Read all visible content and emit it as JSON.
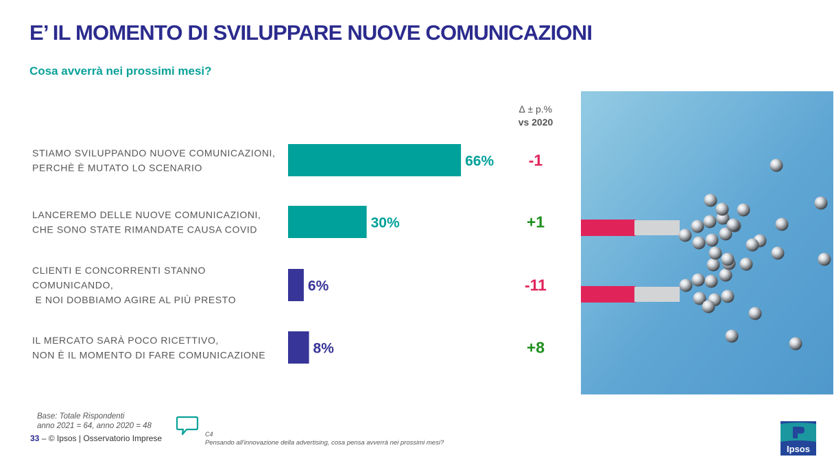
{
  "title": "E’ IL MOMENTO DI SVILUPPARE NUOVE COMUNICAZIONI",
  "subtitle": "Cosa avverrà nei prossimi mesi?",
  "delta_header": {
    "line1": "∆ ± p.%",
    "line2": "vs 2020"
  },
  "chart_data": {
    "type": "bar",
    "orientation": "horizontal",
    "title": "Cosa avverrà nei prossimi mesi?",
    "categories": [
      [
        "STIAMO SVILUPPANDO NUOVE COMUNICAZIONI,",
        "PERCHÈ È MUTATO LO SCENARIO"
      ],
      [
        "LANCEREMO DELLE NUOVE COMUNICAZIONI,",
        "CHE SONO STATE RIMANDATE CAUSA COVID"
      ],
      [
        "CLIENTI E CONCORRENTI STANNO",
        "COMUNICANDO,",
        " E NOI DOBBIAMO AGIRE AL PIÙ PRESTO"
      ],
      [
        "IL MERCATO SARÀ POCO RICETTIVO,",
        "NON È IL MOMENTO DI FARE COMUNICAZIONE"
      ]
    ],
    "values": [
      66,
      30,
      6,
      8
    ],
    "value_labels": [
      "66%",
      "30%",
      "6%",
      "8%"
    ],
    "bar_colors": [
      "#00a19a",
      "#00a19a",
      "#373597",
      "#373597"
    ],
    "deltas": [
      "-1",
      "+1",
      "-11",
      "+8"
    ],
    "delta_colors": [
      "#e0245a",
      "#1e8f1e",
      "#e0245a",
      "#1e8f1e"
    ],
    "xlim": [
      0,
      100
    ],
    "delta_header": "∆ ± p.% vs 2020"
  },
  "footer": {
    "base_line1": "Base: Totale Rispondenti",
    "base_line2": "anno 2021 = 64, anno 2020 = 48",
    "page_number": "33",
    "dash": " – ",
    "copyright": "© Ipsos | Osservatorio Imprese",
    "question_code": "C4",
    "question_text": "Pensando all'innovazione della advertising, cosa pensa avverrà nei prossimi mesi?"
  },
  "logo": {
    "text": "Ipsos"
  },
  "icons": {
    "question": "speech-bubble-icon",
    "photo": "magnet-attracting-metal-balls"
  }
}
